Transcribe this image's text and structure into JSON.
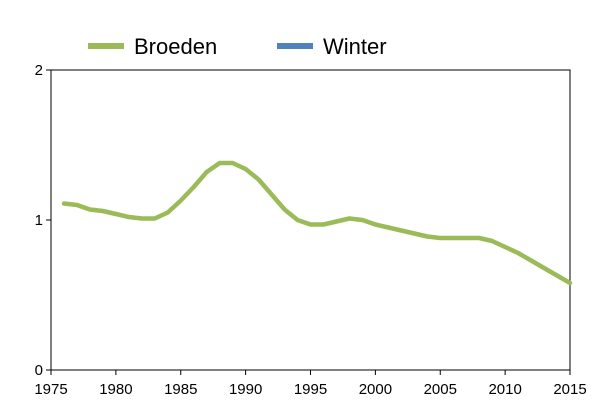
{
  "chart_data": {
    "type": "line",
    "title": "",
    "xlabel": "",
    "ylabel": "",
    "xlim": [
      1975,
      2015
    ],
    "ylim": [
      0,
      2
    ],
    "x_ticks": [
      1975,
      1980,
      1985,
      1990,
      1995,
      2000,
      2005,
      2010,
      2015
    ],
    "y_ticks": [
      0,
      1,
      2
    ],
    "grid": false,
    "legend_position": "top",
    "series": [
      {
        "name": "Broeden",
        "color": "#9BBB59",
        "points": [
          [
            1976,
            1.11
          ],
          [
            1977,
            1.1
          ],
          [
            1978,
            1.07
          ],
          [
            1979,
            1.06
          ],
          [
            1980,
            1.04
          ],
          [
            1981,
            1.02
          ],
          [
            1982,
            1.01
          ],
          [
            1983,
            1.01
          ],
          [
            1984,
            1.05
          ],
          [
            1985,
            1.13
          ],
          [
            1986,
            1.22
          ],
          [
            1987,
            1.32
          ],
          [
            1988,
            1.38
          ],
          [
            1989,
            1.38
          ],
          [
            1990,
            1.34
          ],
          [
            1991,
            1.27
          ],
          [
            1992,
            1.17
          ],
          [
            1993,
            1.07
          ],
          [
            1994,
            1.0
          ],
          [
            1995,
            0.97
          ],
          [
            1996,
            0.97
          ],
          [
            1997,
            0.99
          ],
          [
            1998,
            1.01
          ],
          [
            1999,
            1.0
          ],
          [
            2000,
            0.97
          ],
          [
            2001,
            0.95
          ],
          [
            2002,
            0.93
          ],
          [
            2003,
            0.91
          ],
          [
            2004,
            0.89
          ],
          [
            2005,
            0.88
          ],
          [
            2006,
            0.88
          ],
          [
            2007,
            0.88
          ],
          [
            2008,
            0.88
          ],
          [
            2009,
            0.86
          ],
          [
            2010,
            0.82
          ],
          [
            2011,
            0.78
          ],
          [
            2012,
            0.73
          ],
          [
            2013,
            0.68
          ],
          [
            2014,
            0.63
          ],
          [
            2015,
            0.58
          ]
        ]
      },
      {
        "name": "Winter",
        "color": "#4F81BD",
        "points": []
      }
    ]
  }
}
